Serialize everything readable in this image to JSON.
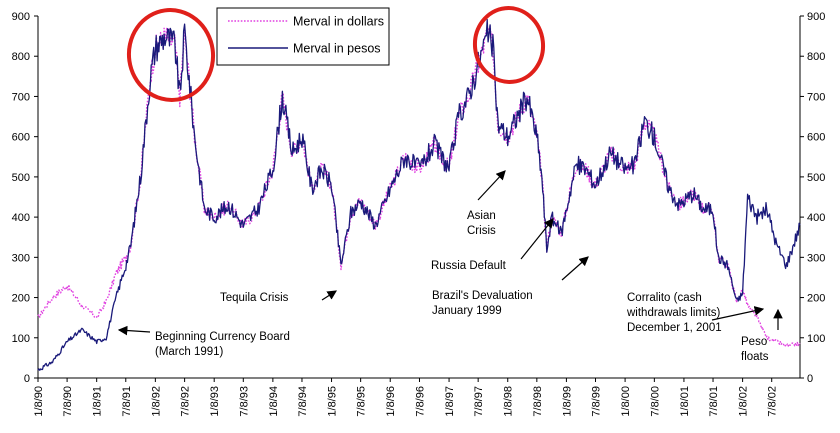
{
  "chart_data": {
    "type": "line",
    "title": "",
    "xlabel": "",
    "ylabel": "",
    "ylim": [
      0,
      900
    ],
    "yticks": [
      0,
      100,
      200,
      300,
      400,
      500,
      600,
      700,
      800,
      900
    ],
    "right_axis_ticks": [
      0,
      100,
      200,
      300,
      400,
      500,
      600,
      700,
      800,
      900
    ],
    "grid": false,
    "legend_position": "top-center",
    "xticks": [
      "1/8/90",
      "7/8/90",
      "1/8/91",
      "7/8/91",
      "1/8/92",
      "7/8/92",
      "1/8/93",
      "7/8/93",
      "1/8/94",
      "7/8/94",
      "1/8/95",
      "7/8/95",
      "1/8/96",
      "7/8/96",
      "1/8/97",
      "7/8/97",
      "1/8/98",
      "7/8/98",
      "1/8/99",
      "7/8/99",
      "1/8/00",
      "7/8/00",
      "1/8/01",
      "7/8/01",
      "1/8/02",
      "7/8/02"
    ],
    "x_range": [
      "1/8/90",
      "12/31/02"
    ],
    "colors": {
      "dollars": "#e040e0",
      "pesos": "#1a1a7a",
      "annotation_circle": "#e0201a"
    },
    "series": [
      {
        "name": "Merval in dollars",
        "style": "dotted",
        "x": [
          "1/8/90",
          "4/8/90",
          "7/8/90",
          "10/8/90",
          "1/8/91",
          "3/8/91",
          "5/8/91",
          "7/8/91",
          "8/8/91",
          "10/8/91",
          "12/8/91",
          "1/8/92",
          "3/8/92",
          "5/8/92",
          "6/8/92",
          "7/8/92",
          "9/8/92",
          "11/8/92",
          "1/8/93",
          "4/8/93",
          "7/8/93",
          "10/8/93",
          "1/8/94",
          "3/8/94",
          "5/8/94",
          "7/8/94",
          "9/8/94",
          "11/8/94",
          "1/8/95",
          "3/8/95",
          "5/8/95",
          "7/8/95",
          "10/8/95",
          "1/8/96",
          "4/8/96",
          "7/8/96",
          "10/8/96",
          "1/8/97",
          "3/8/97",
          "5/8/97",
          "7/8/97",
          "9/8/97",
          "10/8/97",
          "11/8/97",
          "1/8/98",
          "3/8/98",
          "5/8/98",
          "7/8/98",
          "8/8/98",
          "9/8/98",
          "10/8/98",
          "12/8/98",
          "1/8/99",
          "3/8/99",
          "5/8/99",
          "7/8/99",
          "10/8/99",
          "1/8/00",
          "3/8/00",
          "5/8/00",
          "7/8/00",
          "10/8/00",
          "12/8/00",
          "1/8/01",
          "3/8/01",
          "5/8/01",
          "7/8/01",
          "8/8/01",
          "10/8/01",
          "12/1/01",
          "1/8/02",
          "2/8/02",
          "4/8/02",
          "6/8/02",
          "8/8/02",
          "10/8/02",
          "12/31/02"
        ],
        "values": [
          150,
          200,
          230,
          180,
          150,
          190,
          260,
          300,
          330,
          500,
          750,
          820,
          850,
          830,
          700,
          860,
          600,
          420,
          400,
          430,
          380,
          420,
          520,
          700,
          560,
          600,
          470,
          520,
          480,
          280,
          410,
          440,
          380,
          470,
          550,
          520,
          580,
          520,
          650,
          700,
          780,
          860,
          820,
          630,
          600,
          650,
          700,
          600,
          500,
          320,
          400,
          360,
          420,
          530,
          520,
          480,
          560,
          520,
          530,
          640,
          600,
          470,
          430,
          440,
          460,
          420,
          420,
          300,
          280,
          190,
          220,
          180,
          150,
          100,
          90,
          80,
          85
        ],
        "labels": []
      },
      {
        "name": "Merval in pesos",
        "style": "solid",
        "x": [
          "1/8/90",
          "4/8/90",
          "7/8/90",
          "10/8/90",
          "1/8/91",
          "3/8/91",
          "5/8/91",
          "7/8/91",
          "8/8/91",
          "10/8/91",
          "12/8/91",
          "1/8/92",
          "3/8/92",
          "5/8/92",
          "6/8/92",
          "7/8/92",
          "9/8/92",
          "11/8/92",
          "1/8/93",
          "4/8/93",
          "7/8/93",
          "10/8/93",
          "1/8/94",
          "3/8/94",
          "5/8/94",
          "7/8/94",
          "9/8/94",
          "11/8/94",
          "1/8/95",
          "3/8/95",
          "5/8/95",
          "7/8/95",
          "10/8/95",
          "1/8/96",
          "4/8/96",
          "7/8/96",
          "10/8/96",
          "1/8/97",
          "3/8/97",
          "5/8/97",
          "7/8/97",
          "9/8/97",
          "10/8/97",
          "11/8/97",
          "1/8/98",
          "3/8/98",
          "5/8/98",
          "7/8/98",
          "8/8/98",
          "9/8/98",
          "10/8/98",
          "12/8/98",
          "1/8/99",
          "3/8/99",
          "5/8/99",
          "7/8/99",
          "10/8/99",
          "1/8/00",
          "3/8/00",
          "5/8/00",
          "7/8/00",
          "10/8/00",
          "12/8/00",
          "1/8/01",
          "3/8/01",
          "5/8/01",
          "7/8/01",
          "8/8/01",
          "10/8/01",
          "12/1/01",
          "1/8/02",
          "2/8/02",
          "4/8/02",
          "6/8/02",
          "8/8/02",
          "10/8/02",
          "12/31/02"
        ],
        "values": [
          20,
          40,
          90,
          120,
          90,
          100,
          200,
          280,
          330,
          500,
          750,
          820,
          850,
          830,
          700,
          860,
          600,
          420,
          400,
          430,
          380,
          420,
          520,
          700,
          560,
          600,
          470,
          520,
          480,
          280,
          410,
          440,
          380,
          470,
          550,
          520,
          580,
          520,
          650,
          700,
          780,
          860,
          820,
          630,
          600,
          650,
          700,
          600,
          500,
          320,
          400,
          360,
          420,
          530,
          520,
          480,
          560,
          520,
          530,
          640,
          600,
          470,
          430,
          440,
          460,
          420,
          420,
          300,
          280,
          190,
          210,
          450,
          400,
          420,
          330,
          280,
          380
        ],
        "labels": []
      }
    ],
    "legend": [
      {
        "label": "Merval in dollars",
        "color": "#e040e0",
        "style": "dotted"
      },
      {
        "label": "Merval in pesos",
        "color": "#1a1a7a",
        "style": "solid"
      }
    ],
    "annotations": [
      {
        "lines": [
          "Beginning Currency  Board",
          "(March 1991)"
        ],
        "points_to": "3/8/91"
      },
      {
        "lines": [
          "Tequila Crisis"
        ],
        "points_to": "2/8/95"
      },
      {
        "lines": [
          "Asian",
          "Crisis"
        ],
        "points_to": "10/8/97"
      },
      {
        "lines": [
          "Russia Default"
        ],
        "points_to": "8/8/98"
      },
      {
        "lines": [
          "Brazil's Devaluation",
          "January 1999"
        ],
        "points_to": "1/8/99"
      },
      {
        "lines": [
          "Corralito (cash",
          "withdrawals limits)",
          "December 1, 2001"
        ],
        "points_to": "12/1/01"
      },
      {
        "lines": [
          "Peso",
          "floats"
        ],
        "points_to": "1/8/02"
      }
    ],
    "highlight_circles": [
      {
        "around": "1992 peak"
      },
      {
        "around": "1997 peak"
      }
    ]
  }
}
